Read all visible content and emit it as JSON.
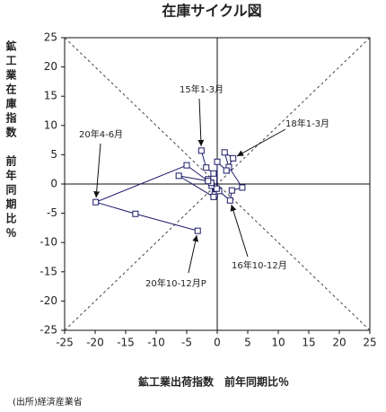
{
  "chart_data": {
    "type": "scatter",
    "title": "在庫サイクル図",
    "x_label": "鉱工業出荷指数　前年同期比％",
    "y_label": "鉱工業在庫指数　前年同期比％",
    "source": "(出所)経済産業省",
    "connected": true,
    "color": "#1a1a66",
    "x": [
      -2.6,
      -1.8,
      -0.6,
      -1.5,
      -0.9,
      -0.4,
      0.3,
      2.1,
      2.4,
      4.1,
      1.9,
      1.2,
      2.6,
      1.5,
      0,
      -0.1,
      -1.0,
      -0.6,
      -6.3,
      -1.5,
      -5.0,
      -19.9,
      -13.4,
      -3.2
    ],
    "y": [
      5.7,
      2.8,
      1.8,
      0.8,
      -0.3,
      -1.8,
      -1.2,
      -2.8,
      -1.1,
      -0.6,
      2.9,
      5.4,
      4.4,
      2.3,
      3.8,
      -0.8,
      0.2,
      -2.2,
      1.4,
      0.5,
      3.2,
      -3.1,
      -5.1,
      -8.0
    ],
    "annotations": [
      {
        "text": "15年1-3月",
        "point": 0
      },
      {
        "text": "18年1-3月",
        "point": 12
      },
      {
        "text": "20年4-6月",
        "point": 21
      },
      {
        "text": "16年10-12月",
        "point": 7
      },
      {
        "text": "20年10-12月P",
        "point": 23
      }
    ],
    "xlim": [
      -25,
      25
    ],
    "ylim": [
      -25,
      25
    ],
    "xticks": [
      -25,
      -20,
      -15,
      -10,
      -5,
      0,
      5,
      10,
      15,
      20,
      25
    ],
    "yticks": [
      -25,
      -20,
      -15,
      -10,
      -5,
      0,
      5,
      10,
      15,
      20,
      25
    ]
  }
}
